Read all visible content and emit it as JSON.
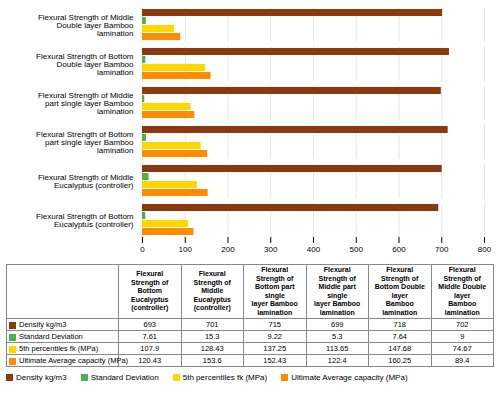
{
  "chart_data": {
    "type": "bar",
    "orientation": "horizontal",
    "categories": [
      "Flexural Strength of Middle Double layer Bamboo lamination",
      "Flexural Strength of Bottom Double layer Bamboo lamination",
      "Flexural Strength of Middle part single layer Bamboo lamination",
      "Flexural Strength of Bottom part single layer Bamboo lamination",
      "Flexural Strength of Middle Eucalyptus (controller)",
      "Flexural Strength of Bottom Eucalyptus (controller)"
    ],
    "series": [
      {
        "name": "Density kg/m3",
        "color": "#8B3A10",
        "values": [
          702,
          718,
          699,
          715,
          701,
          693
        ]
      },
      {
        "name": "Standard Deviation",
        "color": "#4CAF50",
        "values": [
          9,
          7.64,
          5.3,
          9.22,
          15.3,
          7.61
        ]
      },
      {
        "name": "5th percentiles fk (MPa)",
        "color": "#FFD700",
        "values": [
          74.67,
          147.68,
          113.65,
          137.25,
          128.43,
          107.9
        ]
      },
      {
        "name": "Ultimate Average capacity (MPa)",
        "color": "#FF8C00",
        "values": [
          89.4,
          160.25,
          122.4,
          152.43,
          153.6,
          120.43
        ]
      }
    ],
    "xlim": [
      0,
      800
    ],
    "xticks": [
      0,
      100,
      200,
      300,
      400,
      500,
      600,
      700,
      800
    ],
    "grid": true,
    "legend": "bottom",
    "table": {
      "columns": [
        "Flexural Strength of\nBottom Eucalyptus\n(controller)",
        "Flexural Strength of\nMiddle Eucalyptus\n(controller)",
        "Flexural Strength of\nBottom part single\nlayer Bamboo\nlamination",
        "Flexural Strength of\nMiddle part single\nlayer Bamboo\nlamination",
        "Flexural Strength of\nBottom Double layer\nBamboo lamination",
        "Flexural Strength of\nMiddle Double layer\nBamboo lamination"
      ],
      "cells": [
        [
          693,
          701,
          715,
          699,
          718,
          702
        ],
        [
          7.61,
          15.3,
          9.22,
          5.3,
          7.64,
          9
        ],
        [
          107.9,
          128.43,
          137.25,
          113.65,
          147.68,
          74.67
        ],
        [
          120.43,
          153.6,
          152.43,
          122.4,
          160.25,
          89.4
        ]
      ]
    }
  }
}
